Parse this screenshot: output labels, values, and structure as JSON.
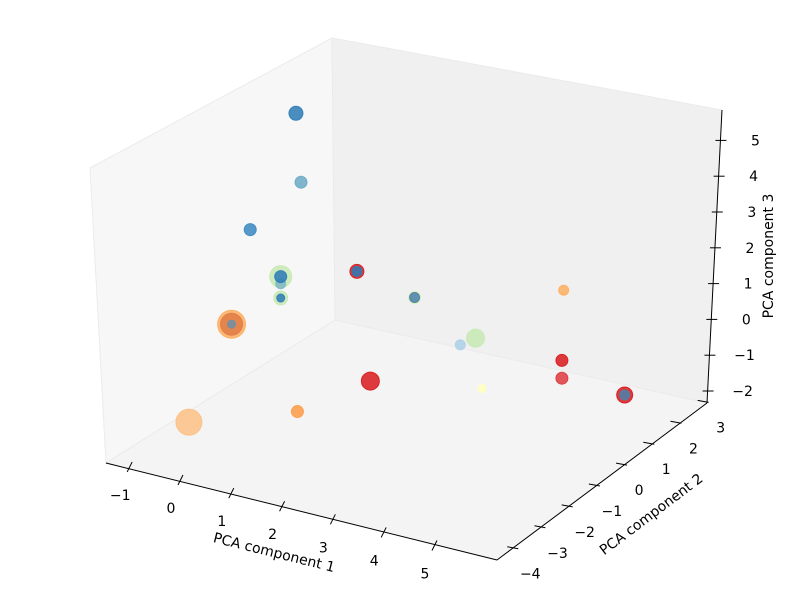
{
  "chart_data": {
    "type": "scatter3d",
    "title": "",
    "xlabel": "PCA component 1",
    "ylabel": "PCA component 2",
    "zlabel": "PCA component 3",
    "xlim": [
      -1.5,
      6.2
    ],
    "ylim": [
      -4.6,
      3.0
    ],
    "zlim": [
      -2.3,
      5.9
    ],
    "xticks": [
      "−1",
      "0",
      "1",
      "2",
      "3",
      "4",
      "5"
    ],
    "xtick_values": [
      -1,
      0,
      1,
      2,
      3,
      4,
      5
    ],
    "yticks": [
      "−4",
      "−3",
      "−2",
      "−1",
      "0",
      "1",
      "2",
      "3"
    ],
    "ytick_values": [
      -4,
      -3,
      -2,
      -1,
      0,
      1,
      2,
      3
    ],
    "zticks": [
      "−2",
      "−1",
      "0",
      "1",
      "2",
      "3",
      "4",
      "5"
    ],
    "ztick_values": [
      -2,
      -1,
      0,
      1,
      2,
      3,
      4,
      5
    ],
    "grid": false,
    "colors": {
      "pane_left": "#f7f7f7",
      "pane_right": "#f0f0f0",
      "pane_floor": "#f4f4f4"
    },
    "points": [
      {
        "x": -0.2,
        "y": 0,
        "z": 5.2,
        "color": "#2c7bb6",
        "size": 49
      },
      {
        "x": -0.1,
        "y": 0,
        "z": 3.3,
        "color": "#6aa9c6",
        "size": 36
      },
      {
        "x": -1.1,
        "y": 0,
        "z": 1.6,
        "color": "#3a88c0",
        "size": 36
      },
      {
        "x": -0.5,
        "y": 0,
        "z": 0.5,
        "color": "#c7e9b4",
        "size": 121
      },
      {
        "x": -0.5,
        "y": 0,
        "z": 0.3,
        "color": "#7fb8c4",
        "size": 25
      },
      {
        "x": -0.5,
        "y": 0,
        "z": 0.5,
        "color": "#2c7bb6",
        "size": 36
      },
      {
        "x": -0.5,
        "y": 0,
        "z": -0.1,
        "color": "#c7e9b4",
        "size": 49
      },
      {
        "x": -0.5,
        "y": 0,
        "z": -0.1,
        "color": "#2c7bb6",
        "size": 16
      },
      {
        "x": -1.2,
        "y": -0.5,
        "z": -0.8,
        "color": "#fdae61",
        "size": 196
      },
      {
        "x": -1.2,
        "y": -0.5,
        "z": -0.8,
        "color": "#e07b45",
        "size": 121
      },
      {
        "x": -1.2,
        "y": -0.5,
        "z": -0.8,
        "color": "#6f8fa8",
        "size": 16
      },
      {
        "x": 1.0,
        "y": 0,
        "z": 1.2,
        "color": "#d7191c",
        "size": 49
      },
      {
        "x": 1.0,
        "y": 0,
        "z": 1.2,
        "color": "#2c7bb6",
        "size": 25
      },
      {
        "x": 1.6,
        "y": 1,
        "z": 0.1,
        "color": "#d9efb0",
        "size": 36
      },
      {
        "x": 1.6,
        "y": 1,
        "z": 0.1,
        "color": "#4a80ad",
        "size": 25
      },
      {
        "x": 2.5,
        "y": 1,
        "z": -0.9,
        "color": "#abd0e6",
        "size": 25
      },
      {
        "x": 2.8,
        "y": 1,
        "z": -0.6,
        "color": "#c7e9b4",
        "size": 81
      },
      {
        "x": 4.0,
        "y": 2,
        "z": 0.6,
        "color": "#fdae61",
        "size": 25
      },
      {
        "x": 4.5,
        "y": 1,
        "z": -0.6,
        "color": "#d7191c",
        "size": 36
      },
      {
        "x": 4.5,
        "y": 1,
        "z": -1.1,
        "color": "#dd3a3d",
        "size": 36
      },
      {
        "x": 4.0,
        "y": -1,
        "z": -0.4,
        "color": "#ffffbf",
        "size": 16
      },
      {
        "x": 5.2,
        "y": 2,
        "z": -1.9,
        "color": "#d7191c",
        "size": 64
      },
      {
        "x": 5.2,
        "y": 2,
        "z": -1.9,
        "color": "#4a80ad",
        "size": 25
      },
      {
        "x": 1.8,
        "y": -1,
        "z": -1.0,
        "color": "#d7191c",
        "size": 81
      },
      {
        "x": 0.9,
        "y": -2,
        "z": -1.6,
        "color": "#fd9a45",
        "size": 36
      },
      {
        "x": -0.7,
        "y": -3,
        "z": -1.9,
        "color": "#fdbf85",
        "size": 169
      }
    ]
  }
}
